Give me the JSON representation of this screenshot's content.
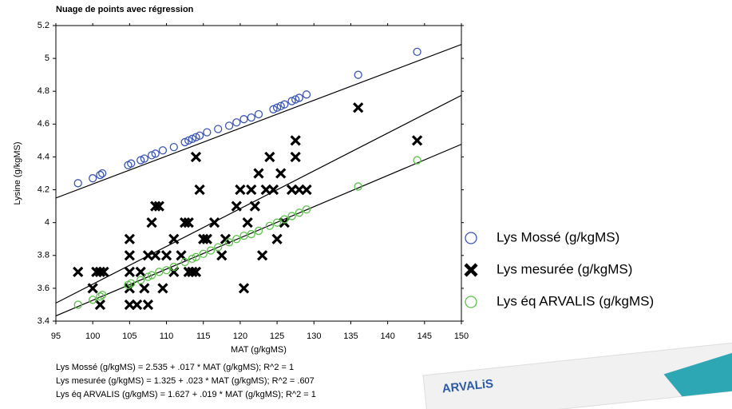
{
  "chart_data": {
    "type": "scatter",
    "title": "Nuage de points avec régression",
    "x_label": "MAT (g/kgMS)",
    "y_label": "Lysine (g/kgMS)",
    "xlim": [
      95,
      150
    ],
    "ylim": [
      3.4,
      5.2
    ],
    "xticks": [
      95,
      100,
      105,
      110,
      115,
      120,
      125,
      130,
      135,
      140,
      145,
      150
    ],
    "yticks": [
      3.4,
      3.6,
      3.8,
      4,
      4.2,
      4.4,
      4.6,
      4.8,
      5,
      5.2
    ],
    "legend": "right",
    "series": [
      {
        "name": "Lys Mossé (g/kgMS)",
        "color": "#3a55b4",
        "marker": "circle",
        "fit": {
          "intercept": 2.535,
          "slope": 0.017
        },
        "x": [
          98,
          100,
          101,
          101.3,
          104.8,
          105.2,
          106.5,
          107,
          108,
          108.5,
          109.5,
          111,
          112.5,
          113,
          113.5,
          114,
          114.5,
          115.5,
          117,
          118.5,
          119.5,
          120.5,
          121.5,
          122.5,
          124.5,
          125,
          125.5,
          126,
          127,
          127.5,
          128,
          129,
          136,
          144
        ],
        "y": [
          4.24,
          4.27,
          4.29,
          4.3,
          4.35,
          4.36,
          4.38,
          4.39,
          4.41,
          4.42,
          4.44,
          4.46,
          4.49,
          4.5,
          4.51,
          4.52,
          4.53,
          4.55,
          4.57,
          4.59,
          4.61,
          4.63,
          4.64,
          4.66,
          4.69,
          4.7,
          4.71,
          4.72,
          4.74,
          4.75,
          4.76,
          4.78,
          4.9,
          5.04
        ]
      },
      {
        "name": "Lys mesurée (g/kgMS)",
        "color": "#000000",
        "marker": "x",
        "fit": {
          "intercept": 1.325,
          "slope": 0.023
        },
        "x": [
          98,
          100,
          100.5,
          101,
          101.5,
          101,
          105,
          105,
          105,
          105,
          105,
          106,
          106.5,
          107,
          107.5,
          107.5,
          108,
          108.5,
          108.5,
          109,
          109.5,
          110,
          111,
          111,
          112,
          112.5,
          113,
          113,
          113.5,
          114,
          114,
          114.5,
          115,
          115.5,
          116.5,
          117.5,
          118,
          119.5,
          120,
          120.5,
          121,
          121.5,
          122,
          122.5,
          123,
          123.5,
          124,
          124.5,
          125,
          125.5,
          126,
          127,
          127.5,
          127.5,
          128,
          129,
          136,
          144
        ],
        "y": [
          3.7,
          3.6,
          3.7,
          3.7,
          3.7,
          3.5,
          3.9,
          3.8,
          3.7,
          3.6,
          3.5,
          3.5,
          3.7,
          3.6,
          3.8,
          3.5,
          4.0,
          3.8,
          4.1,
          4.1,
          3.6,
          3.8,
          3.9,
          3.7,
          3.8,
          4.0,
          4.0,
          3.7,
          3.7,
          4.4,
          3.7,
          4.2,
          3.9,
          3.9,
          4.0,
          3.8,
          3.9,
          4.1,
          4.2,
          3.6,
          4.0,
          4.2,
          4.1,
          4.3,
          3.8,
          4.2,
          4.4,
          4.2,
          3.9,
          4.3,
          4.0,
          4.2,
          4.4,
          4.5,
          4.2,
          4.2,
          4.7,
          4.5
        ]
      },
      {
        "name": "Lys éq ARVALIS (g/kgMS)",
        "color": "#5cc24a",
        "marker": "circle",
        "fit": {
          "intercept": 1.627,
          "slope": 0.019
        },
        "x": [
          98,
          100,
          101,
          101.3,
          104.8,
          105.2,
          106.5,
          107.5,
          108,
          109,
          110,
          111,
          112.5,
          113.5,
          114,
          115,
          116,
          117,
          118.5,
          119.5,
          120.5,
          121.5,
          122.5,
          124,
          125,
          126,
          127,
          128,
          129,
          136,
          144
        ],
        "y": [
          3.5,
          3.53,
          3.55,
          3.56,
          3.62,
          3.63,
          3.65,
          3.67,
          3.68,
          3.7,
          3.71,
          3.73,
          3.76,
          3.78,
          3.79,
          3.81,
          3.83,
          3.85,
          3.88,
          3.9,
          3.92,
          3.93,
          3.95,
          3.98,
          4.0,
          4.02,
          4.04,
          4.06,
          4.08,
          4.22,
          4.38
        ]
      }
    ],
    "annotations": [
      "Lys Mossé (g/kgMS) = 2.535 + .017 * MAT (g/kgMS); R^2 = 1",
      "Lys mesurée (g/kgMS) = 1.325 + .023 * MAT (g/kgMS); R^2 = .607",
      "Lys éq ARVALIS (g/kgMS) = 1.627 + .019 * MAT (g/kgMS); R^2 = 1"
    ],
    "logo": "ARVALiS"
  }
}
